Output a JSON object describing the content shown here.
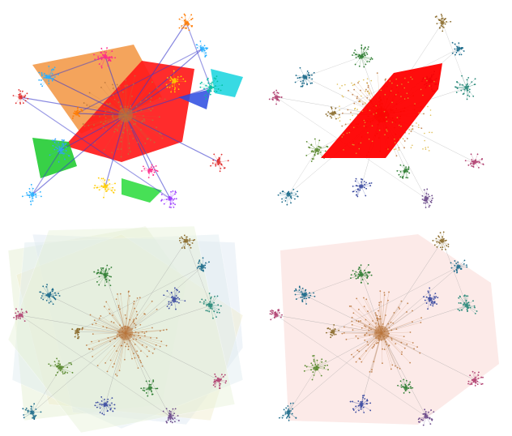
{
  "figure": {
    "panels": [
      {
        "id": "top-left",
        "style": "colored-subgraph-hulls",
        "highlight": "#ff1010"
      },
      {
        "id": "top-right",
        "style": "single-hull-highlight",
        "highlight": "#ff0000"
      },
      {
        "id": "bottom-left",
        "style": "overlapping-pastel-hulls",
        "highlight": "#dfe8f0"
      },
      {
        "id": "bottom-right",
        "style": "single-pastel-hull",
        "highlight": "#fbe3e0"
      }
    ],
    "colors": {
      "hub": "#b8743a",
      "clusters": [
        "#2e7d32",
        "#1b6a8a",
        "#3a4aa0",
        "#6b4a8a",
        "#8a6a2a",
        "#2a8a7a",
        "#b04070",
        "#5a8a30"
      ]
    }
  }
}
